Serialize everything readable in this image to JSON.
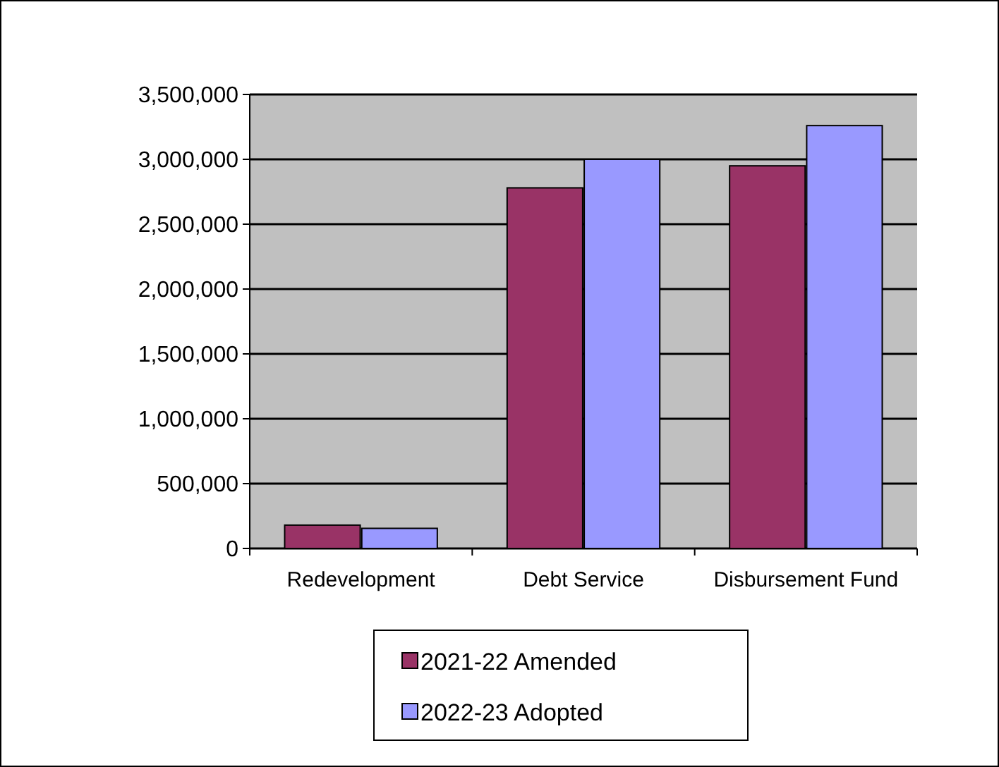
{
  "chart_data": {
    "type": "bar",
    "categories": [
      "Redevelopment",
      "Debt Service",
      "Disbursement Fund"
    ],
    "series": [
      {
        "name": "2021-22 Amended",
        "color": "#993366",
        "values": [
          180000,
          2780000,
          2950000
        ]
      },
      {
        "name": "2022-23 Adopted",
        "color": "#9999ff",
        "values": [
          155000,
          3000000,
          3260000
        ]
      }
    ],
    "ylim": [
      0,
      3500000
    ],
    "yticks": [
      {
        "value": 0,
        "label": "0"
      },
      {
        "value": 500000,
        "label": "500,000"
      },
      {
        "value": 1000000,
        "label": "1,000,000"
      },
      {
        "value": 1500000,
        "label": "1,500,000"
      },
      {
        "value": 2000000,
        "label": "2,000,000"
      },
      {
        "value": 2500000,
        "label": "2,500,000"
      },
      {
        "value": 3000000,
        "label": "3,000,000"
      },
      {
        "value": 3500000,
        "label": "3,500,000"
      }
    ],
    "grid": "y",
    "legend": "bottom"
  }
}
